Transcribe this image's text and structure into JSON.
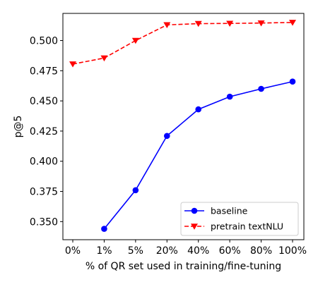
{
  "chart_data": {
    "type": "line",
    "categories": [
      "0%",
      "1%",
      "5%",
      "20%",
      "40%",
      "60%",
      "80%",
      "100%"
    ],
    "xlabel": "% of QR set used in training/fine-tuning",
    "ylabel": "p@5",
    "ylim": [
      0.335,
      0.5225
    ],
    "yticks": [
      "0.350",
      "0.375",
      "0.400",
      "0.425",
      "0.450",
      "0.475",
      "0.500"
    ],
    "grid": false,
    "legend_position": "bottom-right",
    "series": [
      {
        "name": "baseline",
        "color": "#0000ff",
        "line_style": "solid",
        "marker": "circle",
        "values": [
          null,
          0.344,
          0.376,
          0.421,
          0.443,
          0.4535,
          0.46,
          0.466
        ]
      },
      {
        "name": "pretrain textNLU",
        "color": "#ff0000",
        "line_style": "dashed",
        "marker": "triangle-down",
        "values": [
          0.4805,
          0.4855,
          0.5,
          0.513,
          0.514,
          0.5142,
          0.5145,
          0.515
        ]
      }
    ]
  }
}
